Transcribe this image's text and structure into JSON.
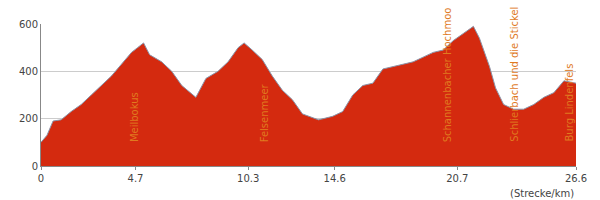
{
  "chart_data": {
    "type": "area",
    "x_label": "(Strecke/km)",
    "x": [
      0,
      0.3,
      0.6,
      1.0,
      1.5,
      2.0,
      2.5,
      3.0,
      3.5,
      4.0,
      4.5,
      4.8,
      5.1,
      5.4,
      6.0,
      6.5,
      7.0,
      7.7,
      8.2,
      8.8,
      9.3,
      9.8,
      10.1,
      10.5,
      11.0,
      11.5,
      12.0,
      12.5,
      13.0,
      13.8,
      14.5,
      15.0,
      15.5,
      16.0,
      16.5,
      17.0,
      17.5,
      18.0,
      18.5,
      19.0,
      19.5,
      20.0,
      20.5,
      21.0,
      21.5,
      21.8,
      22.0,
      22.3,
      22.6,
      23.0,
      23.5,
      24.0,
      24.5,
      25.0,
      25.5,
      26.0,
      26.6
    ],
    "values": [
      100,
      130,
      190,
      195,
      230,
      260,
      300,
      340,
      380,
      430,
      480,
      500,
      520,
      470,
      440,
      400,
      340,
      290,
      370,
      400,
      440,
      500,
      520,
      490,
      450,
      380,
      320,
      280,
      220,
      195,
      210,
      230,
      300,
      340,
      350,
      410,
      420,
      430,
      440,
      460,
      480,
      490,
      530,
      560,
      590,
      540,
      490,
      420,
      330,
      260,
      240,
      240,
      260,
      290,
      310,
      360,
      350
    ],
    "color": "#d42a0f",
    "xlim": [
      0,
      26.6
    ],
    "xticks": [
      0,
      4.7,
      10.3,
      14.6,
      20.7,
      26.6
    ],
    "ylim": [
      0,
      600
    ],
    "yticks": [
      0,
      200,
      400,
      600
    ],
    "grid": true,
    "annotations": [
      {
        "text": "Meilbokus",
        "x": 5.0
      },
      {
        "text": "Felsenmeer",
        "x": 11.5
      },
      {
        "text": "Schannenbacher Hochmoo",
        "x": 20.6
      },
      {
        "text": "Schlierbach und die Stickel",
        "x": 23.9
      },
      {
        "text": "Burg Lindenfels",
        "x": 26.6
      }
    ]
  }
}
